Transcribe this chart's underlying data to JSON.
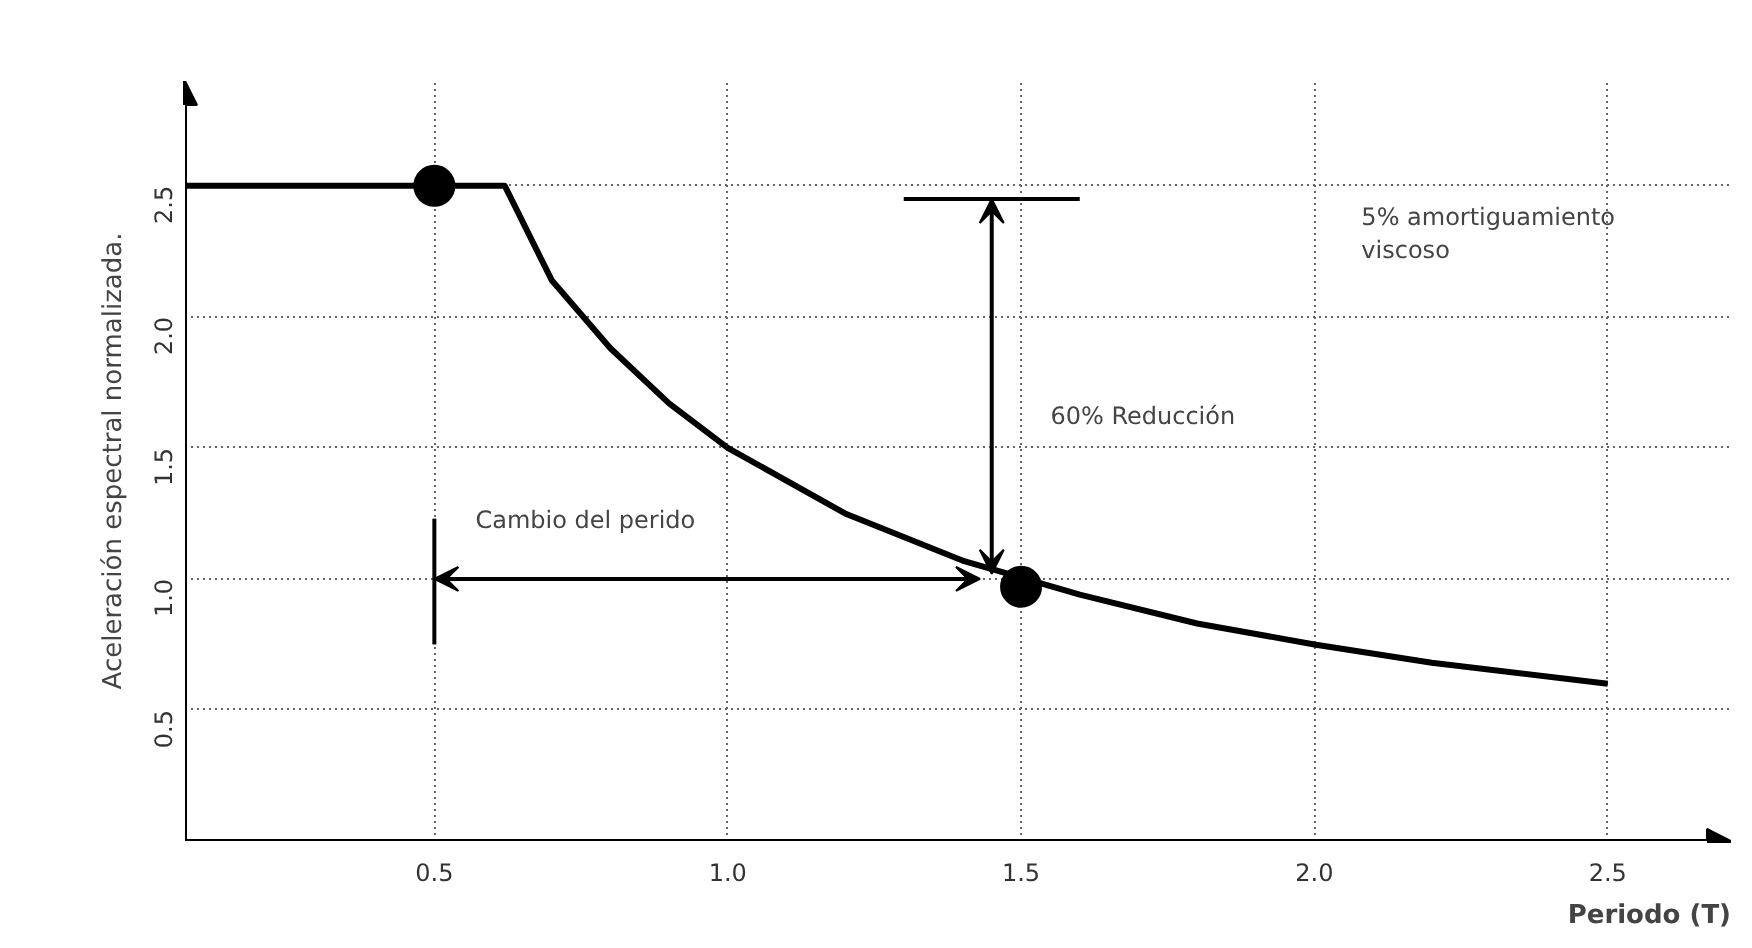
{
  "chart_data": {
    "type": "line",
    "xlabel": "Periodo (T)",
    "ylabel": "Aceleración espectral normalizada.",
    "xlim": [
      0.075,
      2.71
    ],
    "ylim": [
      0,
      2.9
    ],
    "xticks": [
      0.5,
      {
        "value": 1,
        "label": "1.0"
      },
      1.5,
      {
        "value": 2,
        "label": "2.0"
      },
      2.5
    ],
    "yticks": [
      0.5,
      {
        "value": 1,
        "label": "1.0"
      },
      1.5,
      {
        "value": 2,
        "label": "2.0"
      },
      2.5
    ],
    "grid": true,
    "ref_lines": [
      {
        "axis": "x",
        "value": 0.5,
        "color": "#000000"
      },
      {
        "axis": "y",
        "value": 2.45,
        "color": "#000000"
      }
    ],
    "series": [
      {
        "color": "#000000",
        "x": [
          0.075,
          0.62,
          0.7,
          0.8,
          0.9,
          1.0,
          1.2,
          1.4,
          1.6,
          1.8,
          2.0,
          2.2,
          2.5
        ],
        "values": [
          2.5,
          2.5,
          2.14,
          1.88,
          1.67,
          1.5,
          1.25,
          1.07,
          0.94,
          0.83,
          0.75,
          0.68,
          0.6
        ]
      },
      {
        "type": "scatter",
        "color": "#000000",
        "marker": "circle",
        "x": [
          0.5,
          1.5
        ],
        "values": [
          2.5,
          0.97
        ]
      }
    ],
    "annotations": [
      "Cambio del perido",
      "60% Reducción",
      "5% amortiguamiento\nviscoso"
    ]
  }
}
